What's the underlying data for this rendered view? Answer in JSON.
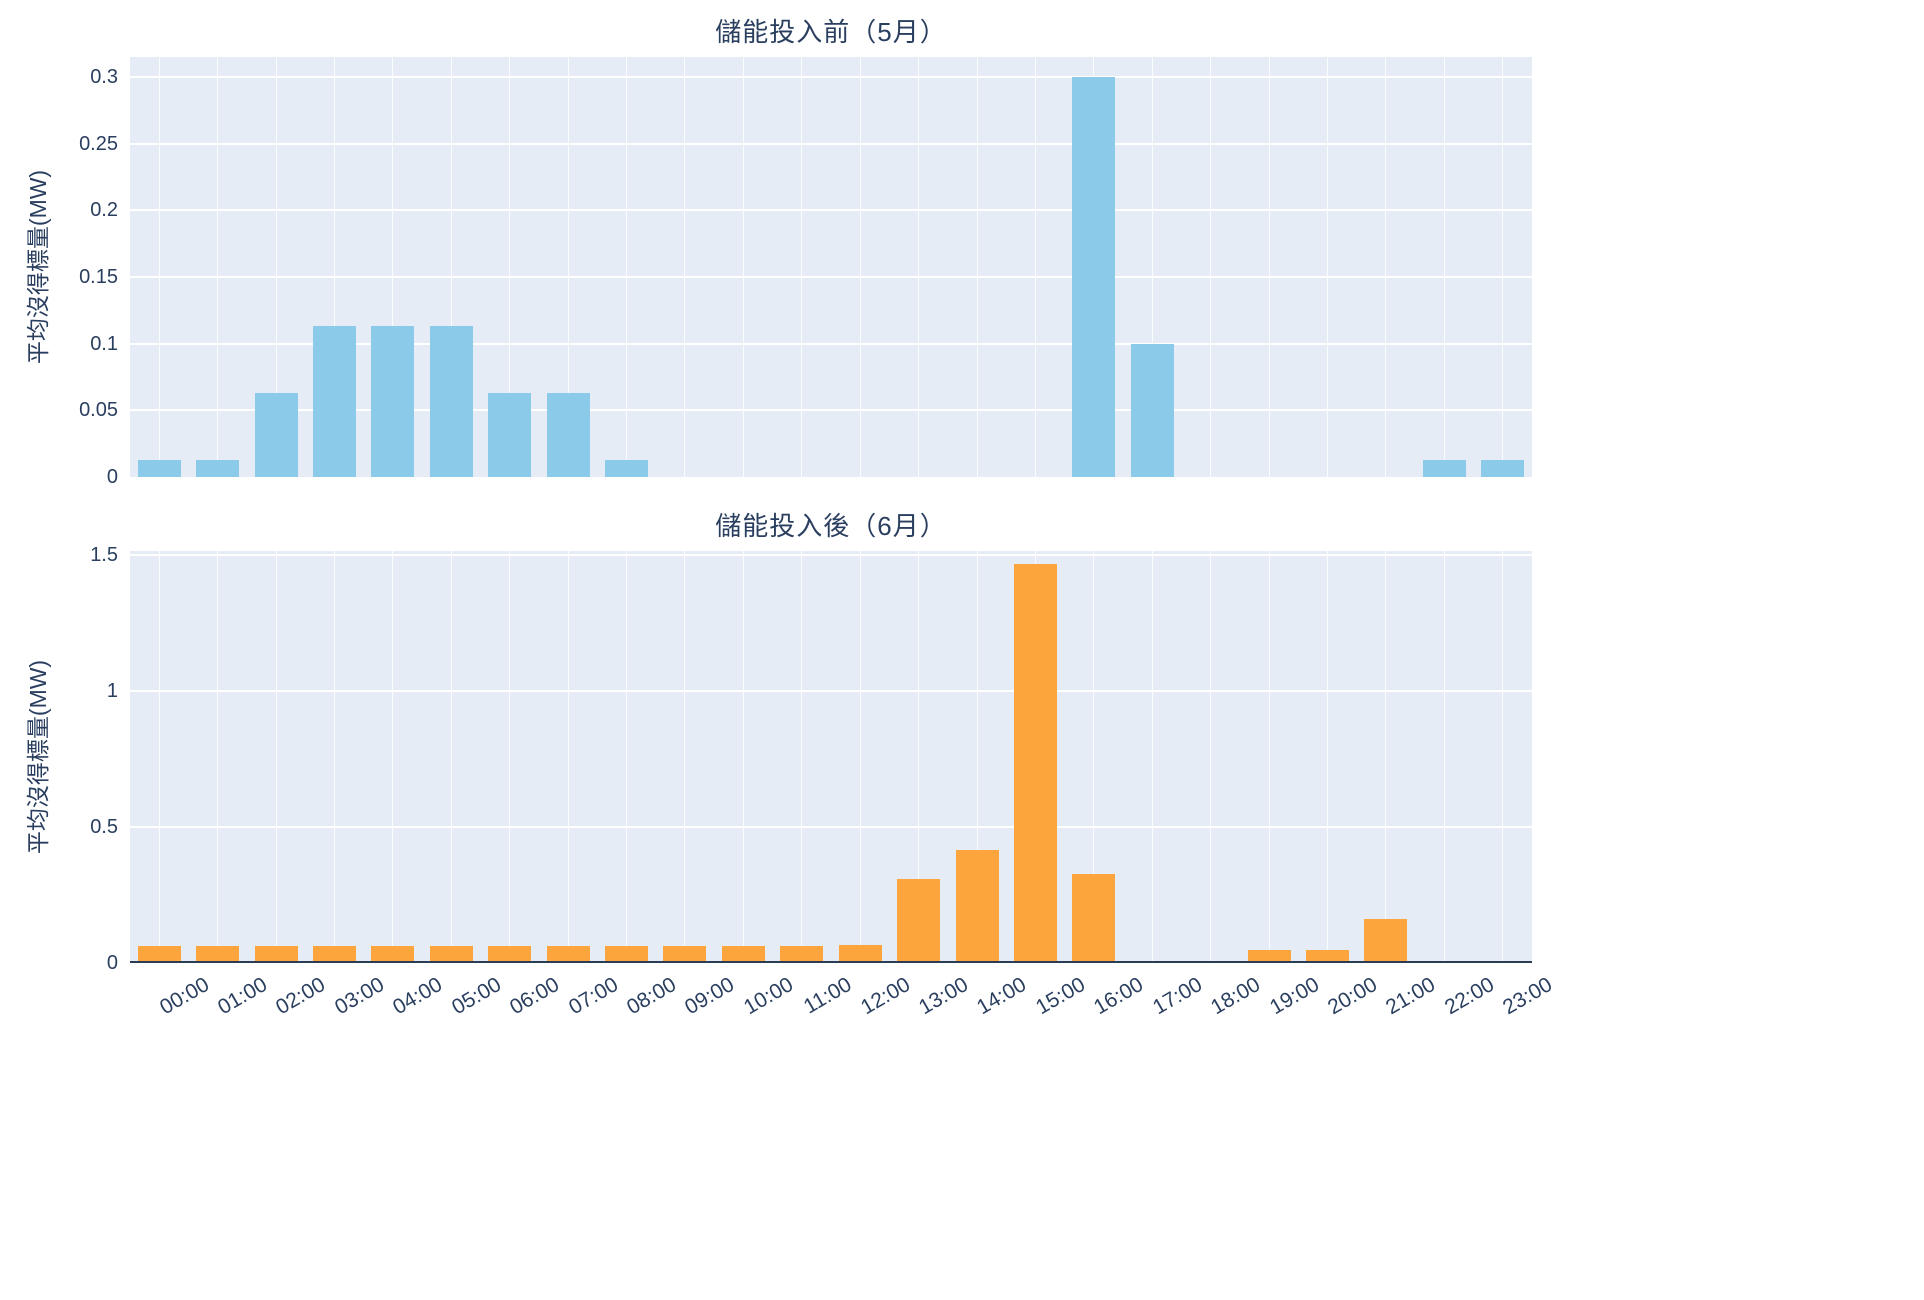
{
  "style": {
    "page_bg": "#ffffff",
    "plot_bg": "#E5ECF6",
    "grid_color": "#ffffff",
    "text_color": "#2a3f5f",
    "axis_line_color": "#2b3d54"
  },
  "chart_data": [
    {
      "type": "bar",
      "title": "儲能投入前（5月）",
      "ylabel": "平均沒得標量(MW)",
      "xlabel": "",
      "bar_color": "#8CCAE9",
      "legend": "none",
      "grid": true,
      "show_x_labels": false,
      "ylim": [
        0,
        0.315
      ],
      "ytick_values": [
        0,
        0.05,
        0.1,
        0.15,
        0.2,
        0.25,
        0.3
      ],
      "ytick_labels": [
        "0",
        "0.05",
        "0.1",
        "0.15",
        "0.2",
        "0.25",
        "0.3"
      ],
      "categories": [
        "00:00",
        "01:00",
        "02:00",
        "03:00",
        "04:00",
        "05:00",
        "06:00",
        "07:00",
        "08:00",
        "09:00",
        "10:00",
        "11:00",
        "12:00",
        "13:00",
        "14:00",
        "15:00",
        "16:00",
        "17:00",
        "18:00",
        "19:00",
        "20:00",
        "21:00",
        "22:00",
        "23:00"
      ],
      "values": [
        0.013,
        0.013,
        0.063,
        0.113,
        0.113,
        0.113,
        0.063,
        0.063,
        0.013,
        0,
        0,
        0,
        0,
        0,
        0,
        0,
        0.3,
        0.1,
        0,
        0,
        0,
        0,
        0.013,
        0.013
      ]
    },
    {
      "type": "bar",
      "title": "儲能投入後（6月）",
      "ylabel": "平均沒得標量(MW)",
      "xlabel": "",
      "bar_color": "#FBA53C",
      "legend": "none",
      "grid": true,
      "show_x_labels": true,
      "ylim": [
        0,
        1.515
      ],
      "ytick_values": [
        0,
        0.5,
        1,
        1.5
      ],
      "ytick_labels": [
        "0",
        "0.5",
        "1",
        "1.5"
      ],
      "categories": [
        "00:00",
        "01:00",
        "02:00",
        "03:00",
        "04:00",
        "05:00",
        "06:00",
        "07:00",
        "08:00",
        "09:00",
        "10:00",
        "11:00",
        "12:00",
        "13:00",
        "14:00",
        "15:00",
        "16:00",
        "17:00",
        "18:00",
        "19:00",
        "20:00",
        "21:00",
        "22:00",
        "23:00"
      ],
      "values": [
        0.055,
        0.055,
        0.055,
        0.055,
        0.055,
        0.055,
        0.055,
        0.055,
        0.055,
        0.055,
        0.055,
        0.055,
        0.06,
        0.3,
        0.41,
        1.46,
        0.32,
        0,
        0,
        0.04,
        0.04,
        0.155,
        0,
        0
      ]
    }
  ]
}
